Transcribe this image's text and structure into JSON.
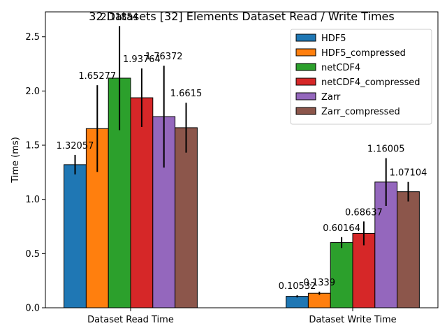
{
  "chart_data": {
    "type": "bar",
    "title": "32 Datasets [32] Elements Dataset Read / Write Times",
    "xlabel": "",
    "ylabel": "Time (ms)",
    "ylim": [
      0,
      2.73
    ],
    "yticks": [
      "0.0",
      "0.5",
      "1.0",
      "1.5",
      "2.0",
      "2.5"
    ],
    "grid": false,
    "legend_position": "top-right",
    "categories": [
      "Dataset Read Time",
      "Dataset Write Time"
    ],
    "series": [
      {
        "name": "HDF5",
        "color": "#1f77b4",
        "values": [
          1.32057,
          0.10532
        ],
        "errors": [
          0.09,
          0.01
        ],
        "labels": [
          "1.32057",
          "0.10532"
        ]
      },
      {
        "name": "HDF5_compressed",
        "color": "#ff7f0e",
        "values": [
          1.65277,
          0.1339
        ],
        "errors": [
          0.4,
          0.015
        ],
        "labels": [
          "1.65277",
          "0.1339"
        ]
      },
      {
        "name": "netCDF4",
        "color": "#2ca02c",
        "values": [
          2.11854,
          0.60164
        ],
        "errors": [
          0.48,
          0.05
        ],
        "labels": [
          "2.11854",
          "0.60164"
        ]
      },
      {
        "name": "netCDF4_compressed",
        "color": "#d62728",
        "values": [
          1.93764,
          0.68637
        ],
        "errors": [
          0.27,
          0.11
        ],
        "labels": [
          "1.93764",
          "0.68637"
        ]
      },
      {
        "name": "Zarr",
        "color": "#9467bd",
        "values": [
          1.76372,
          1.16005
        ],
        "errors": [
          0.47,
          0.22
        ],
        "labels": [
          "1.76372",
          "1.16005"
        ]
      },
      {
        "name": "Zarr_compressed",
        "color": "#8c564b",
        "values": [
          1.6615,
          1.07104
        ],
        "errors": [
          0.23,
          0.09
        ],
        "labels": [
          "1.6615",
          "1.07104"
        ]
      }
    ]
  }
}
